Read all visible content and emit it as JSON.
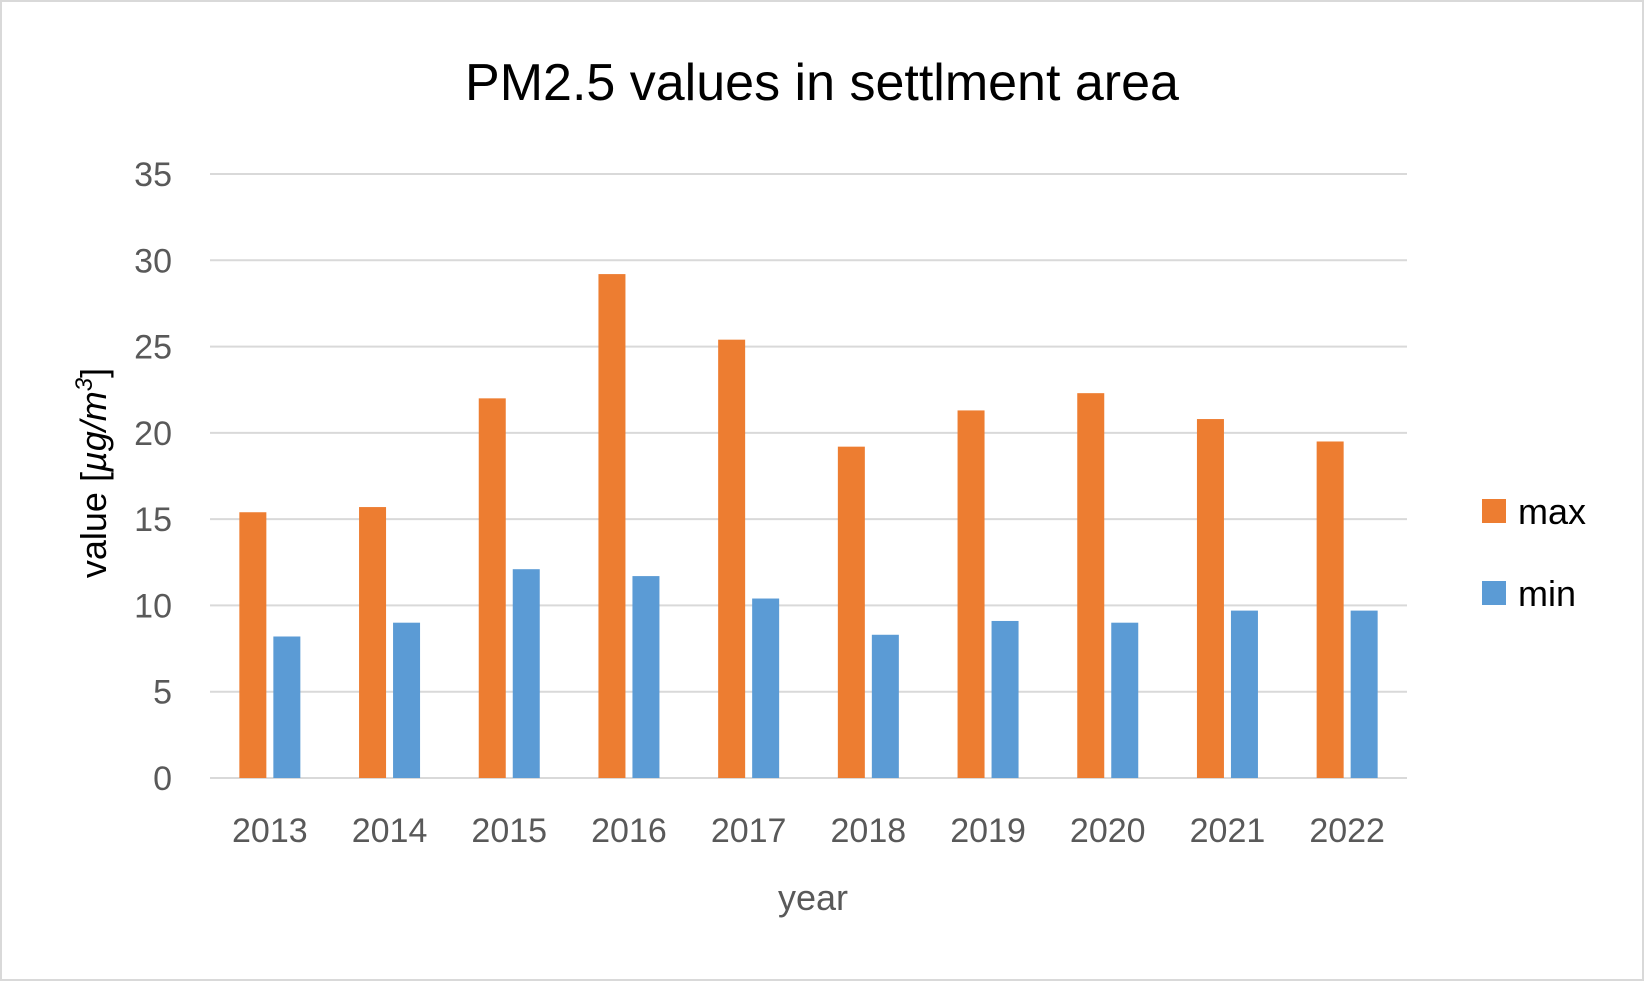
{
  "chart_data": {
    "type": "bar",
    "title": "PM2.5 values in settlment area",
    "xlabel": "year",
    "ylabel": {
      "prefix": "value [",
      "unit_mu": "µ",
      "unit_g": "g/m",
      "unit_exp": "3",
      "suffix": "]"
    },
    "ylim": [
      0,
      35
    ],
    "yticks": [
      "0",
      "5",
      "10",
      "15",
      "20",
      "25",
      "30",
      "35"
    ],
    "grid": true,
    "legend_position": "right",
    "categories": [
      "2013",
      "2014",
      "2015",
      "2016",
      "2017",
      "2018",
      "2019",
      "2020",
      "2021",
      "2022"
    ],
    "series": [
      {
        "name": "max",
        "color": "#ed7d31",
        "values": [
          15.4,
          15.7,
          22.0,
          29.2,
          25.4,
          19.2,
          21.3,
          22.3,
          20.8,
          19.5
        ]
      },
      {
        "name": "min",
        "color": "#5b9bd5",
        "values": [
          8.2,
          9.0,
          12.1,
          11.7,
          10.4,
          8.3,
          9.1,
          9.0,
          9.7,
          9.7
        ]
      }
    ]
  }
}
